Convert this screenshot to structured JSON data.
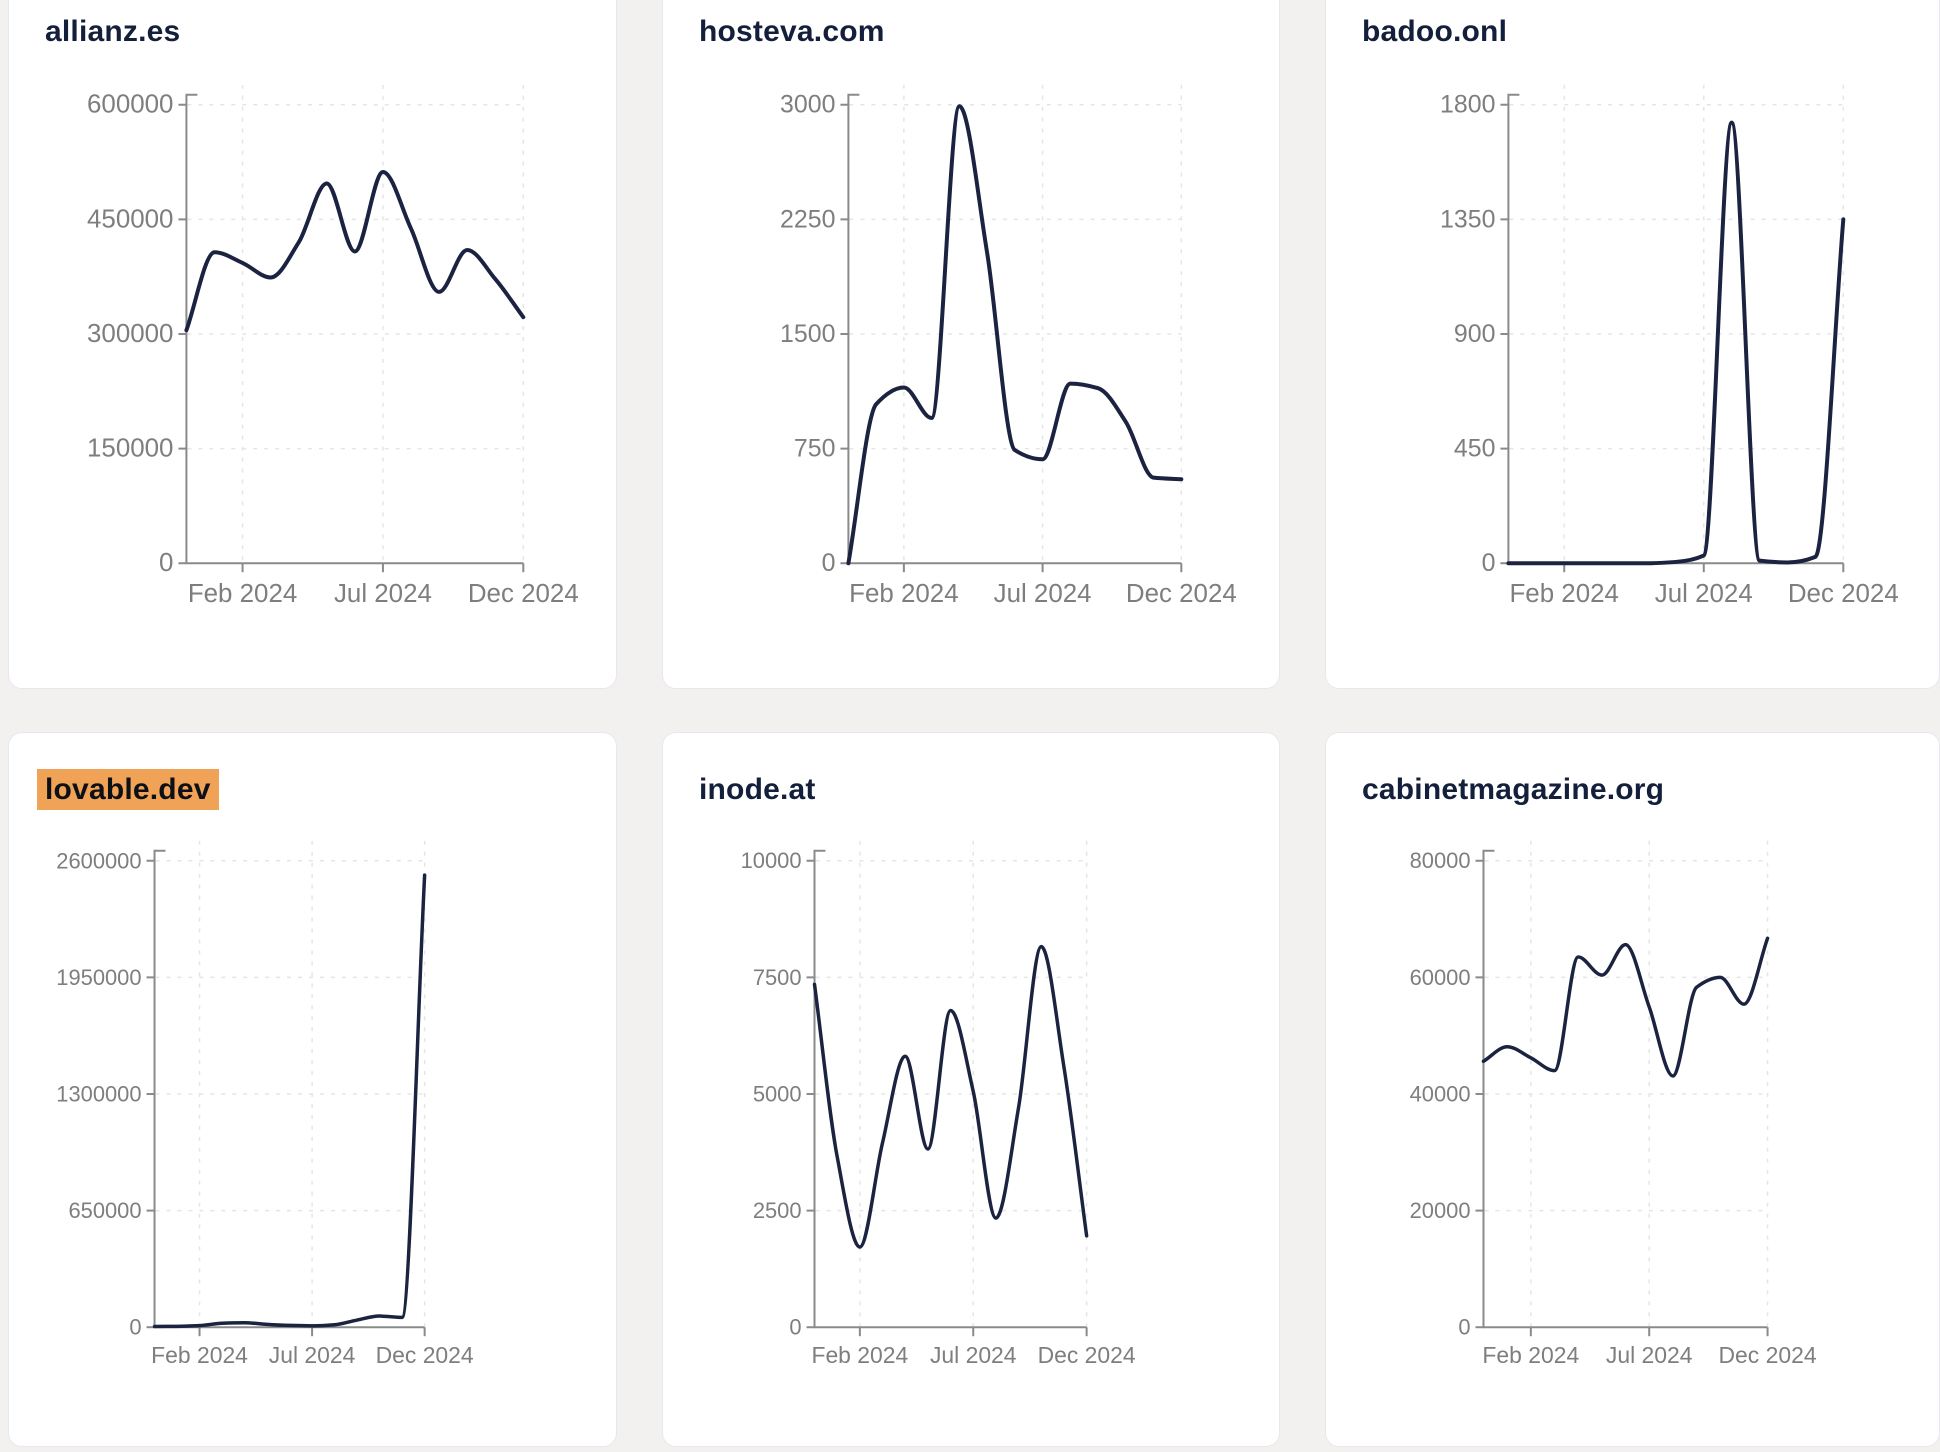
{
  "style": {
    "page_background": "#f2f1f0",
    "card_background": "#ffffff",
    "card_border": "#e6e8ee",
    "title_color": "#141f3c",
    "highlight_color": "#f0a356",
    "line_color": "#1b2340",
    "axis_color": "#8a8a8a",
    "tick_label_color": "#7e7e7e",
    "grid_color": "#e5e5e5"
  },
  "chart_data": [
    {
      "type": "line",
      "title": "allianz.es",
      "title_highlighted": false,
      "x_axis": {
        "points": 13,
        "tick_indices": [
          2,
          7,
          12
        ],
        "tick_labels": [
          "Feb 2024",
          "Jul 2024",
          "Dec 2024"
        ]
      },
      "y_ticks": [
        0,
        150000,
        300000,
        450000,
        600000
      ],
      "ylim": [
        0,
        600000
      ],
      "grid": true,
      "values": [
        305000,
        407000,
        393000,
        374000,
        420000,
        497000,
        408000,
        512000,
        438000,
        355000,
        410000,
        372000,
        322000
      ]
    },
    {
      "type": "line",
      "title": "hosteva.com",
      "title_highlighted": false,
      "x_axis": {
        "points": 13,
        "tick_indices": [
          2,
          7,
          12
        ],
        "tick_labels": [
          "Feb 2024",
          "Jul 2024",
          "Dec 2024"
        ]
      },
      "y_ticks": [
        0,
        750,
        1500,
        2250,
        3000
      ],
      "ylim": [
        0,
        3000
      ],
      "grid": true,
      "values": [
        0,
        1040,
        1150,
        950,
        2990,
        2030,
        740,
        680,
        1175,
        1145,
        925,
        560,
        550
      ]
    },
    {
      "type": "line",
      "title": "badoo.onl",
      "title_highlighted": false,
      "x_axis": {
        "points": 13,
        "tick_indices": [
          2,
          7,
          12
        ],
        "tick_labels": [
          "Feb 2024",
          "Jul 2024",
          "Dec 2024"
        ]
      },
      "y_ticks": [
        0,
        450,
        900,
        1350,
        1800
      ],
      "ylim": [
        0,
        1800
      ],
      "grid": true,
      "values": [
        0,
        0,
        0,
        0,
        0,
        0,
        5,
        30,
        1730,
        10,
        3,
        25,
        1350
      ]
    },
    {
      "type": "line",
      "title": "lovable.dev",
      "title_highlighted": true,
      "x_axis": {
        "points": 13,
        "tick_indices": [
          2,
          7,
          12
        ],
        "tick_labels": [
          "Feb 2024",
          "Jul 2024",
          "Dec 2024"
        ]
      },
      "y_ticks": [
        0,
        650000,
        1300000,
        1950000,
        2600000
      ],
      "ylim": [
        0,
        2600000
      ],
      "grid": true,
      "values": [
        4000,
        5000,
        9000,
        22000,
        25000,
        16000,
        10000,
        8000,
        14000,
        40000,
        62000,
        55000,
        2520000
      ]
    },
    {
      "type": "line",
      "title": "inode.at",
      "title_highlighted": false,
      "x_axis": {
        "points": 13,
        "tick_indices": [
          2,
          7,
          12
        ],
        "tick_labels": [
          "Feb 2024",
          "Jul 2024",
          "Dec 2024"
        ]
      },
      "y_ticks": [
        0,
        2500,
        5000,
        7500,
        10000
      ],
      "ylim": [
        0,
        10000
      ],
      "grid": true,
      "values": [
        7350,
        3650,
        1720,
        3960,
        5810,
        3820,
        6790,
        5050,
        2340,
        4720,
        8160,
        5570,
        1960
      ]
    },
    {
      "type": "line",
      "title": "cabinetmagazine.org",
      "title_highlighted": false,
      "x_axis": {
        "points": 13,
        "tick_indices": [
          2,
          7,
          12
        ],
        "tick_labels": [
          "Feb 2024",
          "Jul 2024",
          "Dec 2024"
        ]
      },
      "y_ticks": [
        0,
        20000,
        40000,
        60000,
        80000
      ],
      "ylim": [
        0,
        80000
      ],
      "grid": true,
      "values": [
        45600,
        48100,
        46200,
        44000,
        63500,
        60400,
        65600,
        54900,
        43100,
        58300,
        60000,
        55400,
        66700
      ]
    }
  ]
}
